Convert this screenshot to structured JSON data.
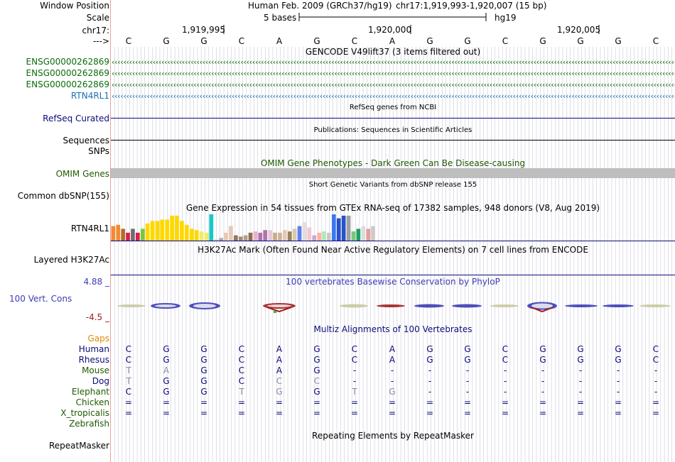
{
  "labels": {
    "window_position": "Window Position",
    "scale": "Scale",
    "chrom": "chr17:",
    "arrow": "--->",
    "sequences": "Sequences",
    "snps": "SNPs",
    "omim_genes": "OMIM Genes",
    "common_dbsnp": "Common dbSNP(155)",
    "gtex_gene": "RTN4RL1",
    "layered": "Layered H3K27Ac",
    "cons_max": "4.88 _",
    "cons_name": "100 Vert. Cons",
    "cons_min": "-4.5 _",
    "gaps": "Gaps",
    "repeatmasker": "RepeatMasker"
  },
  "header": {
    "assembly": "Human Feb. 2009 (GRCh37/hg19)",
    "position": "chr17:1,919,993-1,920,007 (15 bp)",
    "scale_text": "5 bases",
    "scale_db": "hg19",
    "ticks": [
      "1,919,995",
      "1,920,000",
      "1,920,005"
    ]
  },
  "bases": [
    "C",
    "G",
    "G",
    "C",
    "A",
    "G",
    "C",
    "A",
    "G",
    "G",
    "C",
    "G",
    "G",
    "G",
    "C"
  ],
  "colors": {
    "gencode_green": "#0a6e0a",
    "rtn4_blue": "#1a6fb3",
    "navy": "#0c0c78",
    "omim_green": "#1e5a00",
    "omim_bar": "#bebebe",
    "cons_blue": "#3c3cb4",
    "cons_red": "#a01e1e",
    "gaps_orange": "#e08a00",
    "grid": "#c8c8d8",
    "left_border": "#e8a0a0"
  },
  "gencode": {
    "title": "GENCODE V49lift37 (3 items filtered out)",
    "tracks": [
      {
        "name": "ENSG00000262869",
        "color": "green"
      },
      {
        "name": "ENSG00000262869",
        "color": "green"
      },
      {
        "name": "ENSG00000262869",
        "color": "green"
      },
      {
        "name": "RTN4RL1",
        "color": "blue"
      }
    ]
  },
  "refseq": {
    "title": "RefSeq genes from NCBI",
    "label": "RefSeq Curated"
  },
  "publications": {
    "title": "Publications: Sequences in Scientific Articles"
  },
  "omim": {
    "title": "OMIM Gene Phenotypes - Dark Green Can Be Disease-causing"
  },
  "dbsnp": {
    "title": "Short Genetic Variants from dbSNP release 155"
  },
  "gtex": {
    "title": "Gene Expression in 54 tissues from GTEx RNA-seq of 17382 samples, 948 donors (V8, Aug 2019)",
    "values": [
      0.55,
      0.6,
      0.45,
      0.3,
      0.45,
      0.3,
      0.45,
      0.65,
      0.75,
      0.75,
      0.8,
      0.8,
      0.95,
      0.95,
      0.75,
      0.6,
      0.45,
      0.4,
      0.35,
      0.3,
      1.0,
      0.05,
      0.1,
      0.3,
      0.55,
      0.2,
      0.15,
      0.2,
      0.3,
      0.35,
      0.3,
      0.4,
      0.4,
      0.3,
      0.3,
      0.4,
      0.35,
      0.45,
      0.55,
      0.7,
      0.5,
      0.2,
      0.3,
      0.35,
      0.3,
      1.0,
      0.85,
      0.95,
      0.95,
      0.35,
      0.45,
      0.55,
      0.45,
      0.55
    ],
    "colors": [
      "#f08a34",
      "#f08a34",
      "#b46e28",
      "#dc1e50",
      "#6e6e6e",
      "#dc1e50",
      "#78c83c",
      "#ffd800",
      "#ffd800",
      "#ffd800",
      "#ffd800",
      "#ffd800",
      "#ffd800",
      "#ffd800",
      "#ffd800",
      "#ffd800",
      "#ffd800",
      "#ffd800",
      "#f0ec6e",
      "#f0ec6e",
      "#19c8c8",
      "#f0d2c8",
      "#aaaaaa",
      "#e6c8b4",
      "#e6c8b4",
      "#8c7864",
      "#a08c78",
      "#b4a08c",
      "#8c6e50",
      "#e6b4c8",
      "#b46eb4",
      "#aa78aa",
      "#e6c8dc",
      "#ccaa88",
      "#c8b4a0",
      "#e6c8b4",
      "#9c825a",
      "#ddc8b0",
      "#5a82f0",
      "#e6dcdc",
      "#f0c8d2",
      "#c8a8d8",
      "#ffb4a0",
      "#b4e6b4",
      "#c8c8c8",
      "#3c78f0",
      "#2850c8",
      "#2850c8",
      "#a0a0a0",
      "#78c878",
      "#1ea064",
      "#dcdcdc",
      "#e0a0a0",
      "#d2c8c8"
    ]
  },
  "h3k27ac": {
    "title": "H3K27Ac Mark (Often Found Near Active Regulatory Elements) on 7 cell lines from ENCODE"
  },
  "phylop": {
    "title": "100 vertebrates Basewise Conservation by PhyloP"
  },
  "multiz": {
    "title": "Multiz Alignments of 100 Vertebrates",
    "species": [
      {
        "name": "Human",
        "seq": [
          "C",
          "G",
          "G",
          "C",
          "A",
          "G",
          "C",
          "A",
          "G",
          "G",
          "C",
          "G",
          "G",
          "G",
          "C"
        ]
      },
      {
        "name": "Rhesus",
        "seq": [
          "C",
          "G",
          "G",
          "C",
          "A",
          "G",
          "C",
          "A",
          "G",
          "G",
          "C",
          "G",
          "G",
          "G",
          "C"
        ]
      },
      {
        "name": "Mouse",
        "seq": [
          "T",
          "A",
          "G",
          "C",
          "A",
          "G",
          "-",
          "-",
          "-",
          "-",
          "-",
          "-",
          "-",
          "-",
          "-"
        ]
      },
      {
        "name": "Dog",
        "seq": [
          "T",
          "G",
          "G",
          "C",
          "C",
          "C",
          "-",
          "-",
          "-",
          "-",
          "-",
          "-",
          "-",
          "-",
          "-"
        ]
      },
      {
        "name": "Elephant",
        "seq": [
          "C",
          "G",
          "G",
          "T",
          "G",
          "G",
          "T",
          "G",
          "-",
          "-",
          "-",
          "-",
          "-",
          "-",
          "-"
        ]
      },
      {
        "name": "Chicken",
        "seq": [
          "=",
          "=",
          "=",
          "=",
          "=",
          "=",
          "=",
          "=",
          "=",
          "=",
          "=",
          "=",
          "=",
          "=",
          "="
        ]
      },
      {
        "name": "X_tropicalis",
        "seq": [
          "=",
          "=",
          "=",
          "=",
          "=",
          "=",
          "=",
          "=",
          "=",
          "=",
          "=",
          "=",
          "=",
          "=",
          "="
        ]
      },
      {
        "name": "Zebrafish",
        "seq": []
      }
    ]
  },
  "repeat": {
    "title": "Repeating Elements by RepeatMasker"
  }
}
